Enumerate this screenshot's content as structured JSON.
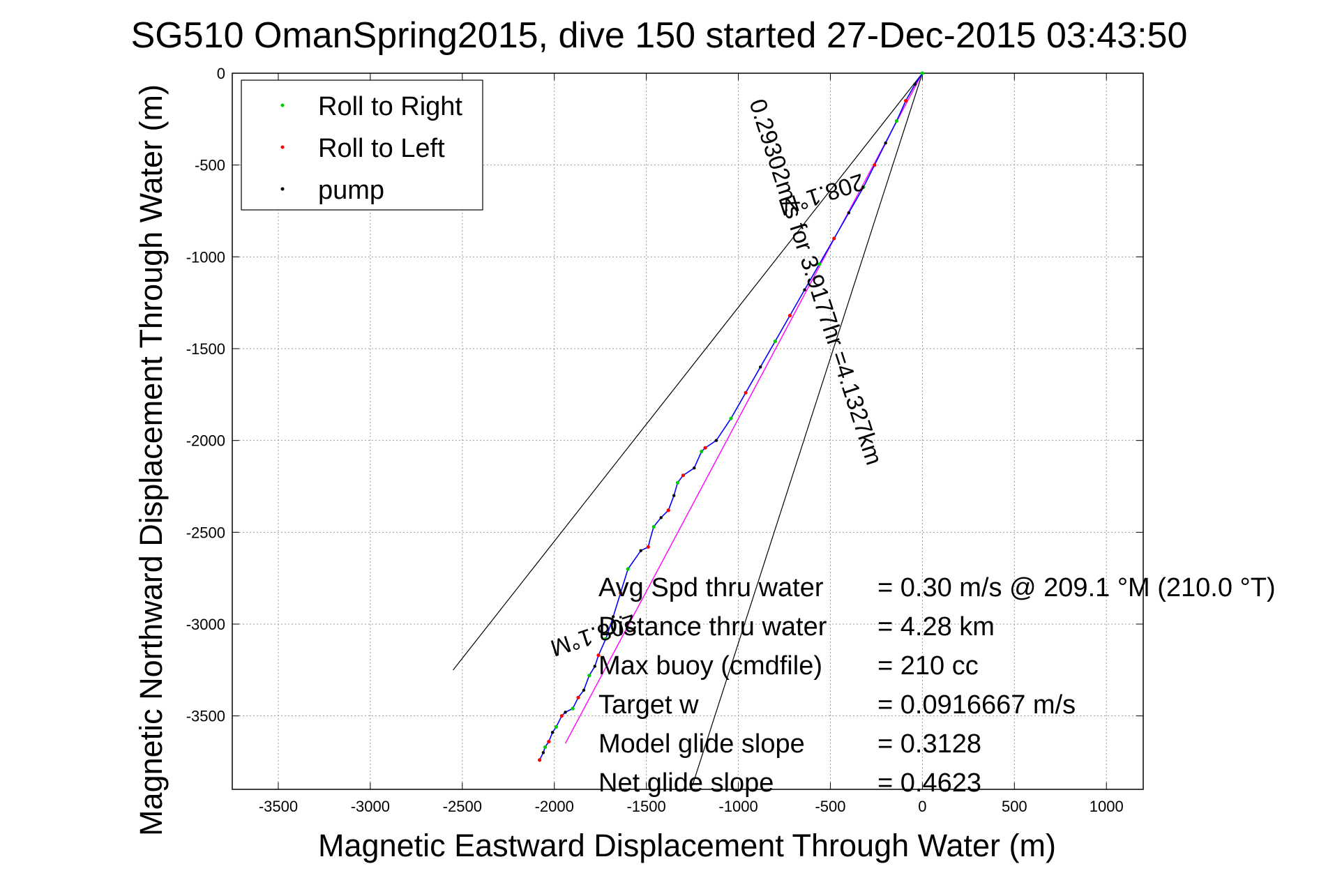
{
  "chart_data": {
    "type": "line",
    "title": "SG510 OmanSpring2015, dive 150 started 27-Dec-2015 03:43:50",
    "xlabel": "Magnetic Eastward Displacement Through Water (m)",
    "ylabel": "Magnetic Northward Displacement Through Water (m)",
    "xlim": [
      -3750,
      1200
    ],
    "ylim": [
      -3900,
      0
    ],
    "xticks": [
      -3500,
      -3000,
      -2500,
      -2000,
      -1500,
      -1000,
      -500,
      0,
      500,
      1000
    ],
    "yticks": [
      0,
      -500,
      -1000,
      -1500,
      -2000,
      -2500,
      -3000,
      -3500
    ],
    "grid": true,
    "legend_position": "top-left",
    "legend": [
      {
        "name": "Roll to Right",
        "color": "#00cc00"
      },
      {
        "name": "Roll to Left",
        "color": "#ff0000"
      },
      {
        "name": "pump",
        "color": "#000000"
      }
    ],
    "track": {
      "color": "#0000ff",
      "x": [
        0,
        -40,
        -90,
        -140,
        -200,
        -260,
        -320,
        -400,
        -480,
        -560,
        -640,
        -720,
        -800,
        -880,
        -960,
        -1040,
        -1120,
        -1180,
        -1200,
        -1240,
        -1300,
        -1330,
        -1350,
        -1380,
        -1420,
        -1460,
        -1480,
        -1490,
        -1530,
        -1600,
        -1640,
        -1680,
        -1720,
        -1760,
        -1780,
        -1810,
        -1840,
        -1870,
        -1900,
        -1940,
        -1960,
        -1990,
        -2010,
        -2030,
        -2050,
        -2060,
        -2080
      ],
      "y": [
        0,
        -60,
        -150,
        -260,
        -380,
        -500,
        -620,
        -760,
        -900,
        -1040,
        -1180,
        -1320,
        -1460,
        -1600,
        -1740,
        -1880,
        -2000,
        -2040,
        -2060,
        -2150,
        -2190,
        -2230,
        -2300,
        -2380,
        -2420,
        -2470,
        -2540,
        -2580,
        -2600,
        -2700,
        -2830,
        -2960,
        -3080,
        -3170,
        -3230,
        -3280,
        -3360,
        -3400,
        -3460,
        -3480,
        -3500,
        -3560,
        -3590,
        -3640,
        -3670,
        -3700,
        -3740
      ]
    },
    "roll_right_x": [
      0,
      -140,
      -320,
      -560,
      -800,
      -1040,
      -1200,
      -1330,
      -1460,
      -1600,
      -1720,
      -1810,
      -1900,
      -1990,
      -2050
    ],
    "roll_right_y": [
      0,
      -260,
      -620,
      -1040,
      -1460,
      -1880,
      -2060,
      -2230,
      -2470,
      -2700,
      -3080,
      -3280,
      -3460,
      -3560,
      -3670
    ],
    "roll_left_x": [
      -90,
      -260,
      -480,
      -720,
      -960,
      -1180,
      -1300,
      -1380,
      -1490,
      -1640,
      -1760,
      -1870,
      -1960,
      -2030,
      -2080
    ],
    "roll_left_y": [
      -150,
      -500,
      -900,
      -1320,
      -1740,
      -2040,
      -2190,
      -2380,
      -2580,
      -2830,
      -3170,
      -3400,
      -3500,
      -3640,
      -3740
    ],
    "pump_x": [
      -40,
      -200,
      -400,
      -640,
      -880,
      -1120,
      -1240,
      -1350,
      -1420,
      -1530,
      -1680,
      -1780,
      -1840,
      -1940,
      -2010,
      -2060
    ],
    "pump_y": [
      -60,
      -380,
      -760,
      -1180,
      -1600,
      -2000,
      -2150,
      -2300,
      -2420,
      -2600,
      -2960,
      -3230,
      -3360,
      -3480,
      -3590,
      -3700
    ],
    "model_line": {
      "color": "#ff00ff",
      "x": [
        0,
        -1940
      ],
      "y": [
        0,
        -3650
      ]
    },
    "fan_lines": [
      {
        "color": "#000000",
        "x": [
          0,
          -2550
        ],
        "y": [
          0,
          -3250
        ]
      },
      {
        "color": "#000000",
        "x": [
          0,
          -1250
        ],
        "y": [
          0,
          -3880
        ]
      }
    ],
    "annotations": [
      {
        "text": "0.29302m/s for 3.9177hr =4.1327km",
        "x": -620,
        "y": -1150,
        "rotation": 72
      },
      {
        "text": "208.1°M",
        "x": -560,
        "y": -620,
        "rotation": 162
      },
      {
        "text": "208.1°M",
        "x": -1800,
        "y": -3020,
        "rotation": 162
      }
    ],
    "info_labels": [
      "Avg Spd thru water",
      "Distance thru water",
      "Max buoy (cmdfile)",
      "Target w",
      "Model glide slope",
      "Net glide slope"
    ],
    "info_values": [
      "=  0.30 m/s @ 209.1 °M (210.0 °T)",
      "=  4.28 km",
      "= 210 cc",
      "= 0.0916667 m/s",
      "= 0.3128",
      "= 0.4623"
    ]
  }
}
